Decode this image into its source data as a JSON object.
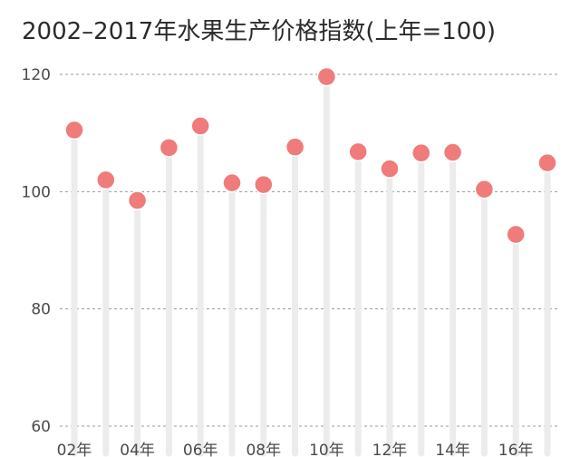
{
  "chart_data": {
    "type": "lollipop",
    "title": "2002–2017年水果生产价格指数(上年=100)",
    "xlabel": "",
    "ylabel": "",
    "ylim": [
      60,
      120
    ],
    "yticks": [
      60,
      80,
      100,
      120
    ],
    "grid": true,
    "categories": [
      "02年",
      "03年",
      "04年",
      "05年",
      "06年",
      "07年",
      "08年",
      "09年",
      "10年",
      "11年",
      "12年",
      "13年",
      "14年",
      "15年",
      "16年",
      "17年"
    ],
    "xtick_labels": [
      "02年",
      "",
      "04年",
      "",
      "06年",
      "",
      "08年",
      "",
      "10年",
      "",
      "12年",
      "",
      "14年",
      "",
      "16年",
      ""
    ],
    "values": [
      110.5,
      102.0,
      98.5,
      107.5,
      111.2,
      101.5,
      101.2,
      107.6,
      119.6,
      106.8,
      103.9,
      106.6,
      106.7,
      100.4,
      92.7,
      104.9
    ],
    "colors": {
      "dot": "#ef7b7b",
      "stem": "#ececec",
      "grid": "#9a9a9a"
    }
  }
}
